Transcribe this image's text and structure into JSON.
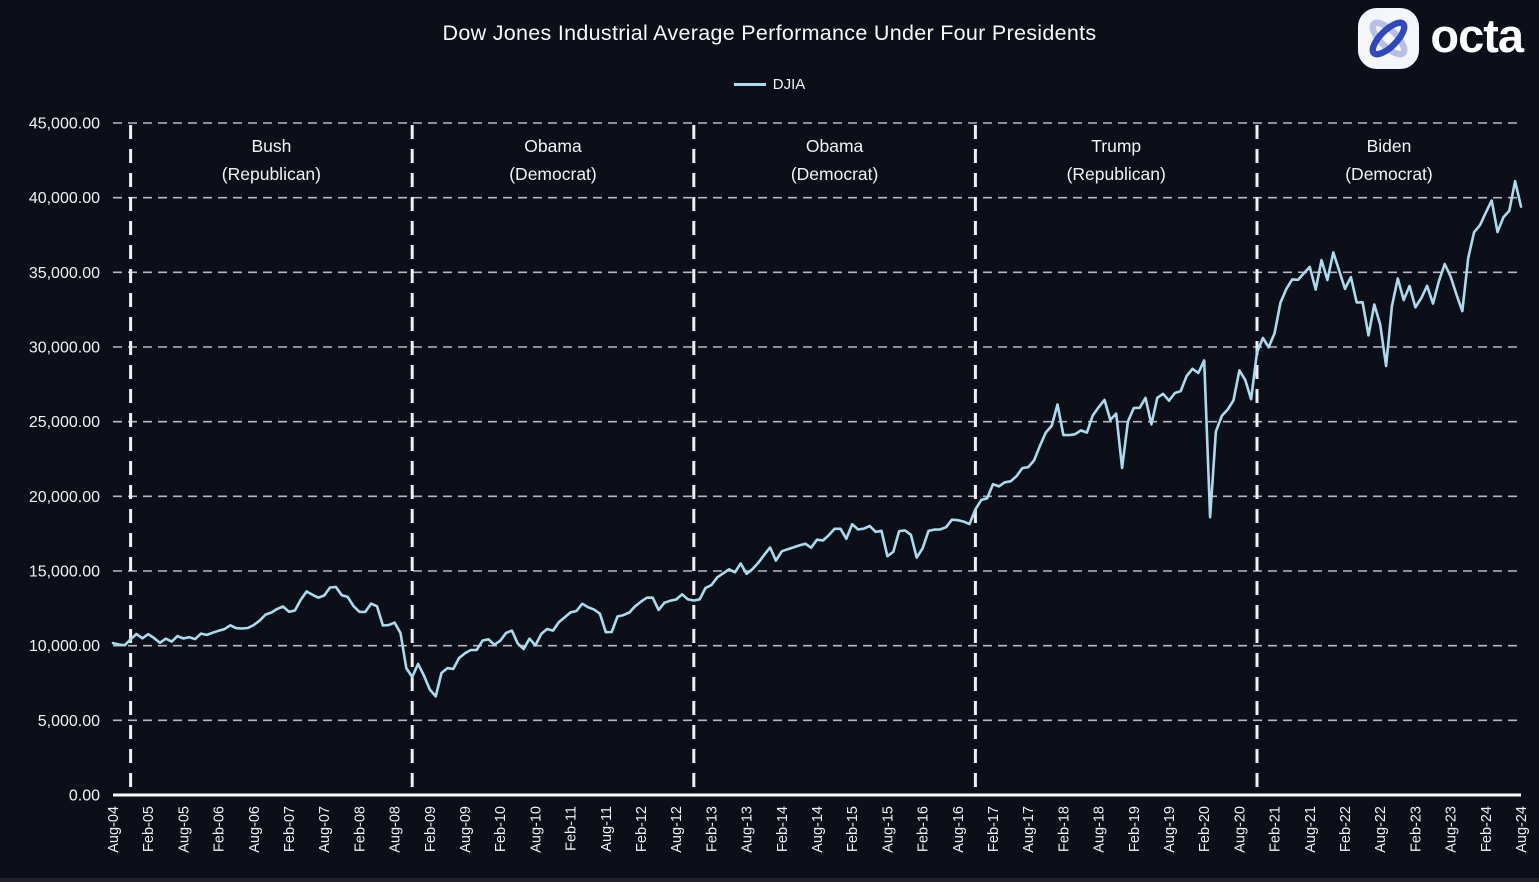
{
  "logo": {
    "text": "octa"
  },
  "chart_data": {
    "type": "line",
    "title": "Dow Jones Industrial Average Performance Under Four Presidents",
    "x_start": "Aug-2004",
    "x_end": "Aug-2024",
    "x_interval": "monthly",
    "x_tick_step_months": 6,
    "x_label_rotation": -90,
    "grid": "horizontal-dashed",
    "legend_position": "top-center",
    "ylim": [
      0,
      45000
    ],
    "y_ticks": [
      0,
      5000,
      10000,
      15000,
      20000,
      25000,
      30000,
      35000,
      40000,
      45000
    ],
    "y_tick_labels": [
      "0.00",
      "5,000.00",
      "10,000.00",
      "15,000.00",
      "20,000.00",
      "25,000.00",
      "30,000.00",
      "35,000.00",
      "40,000.00",
      "45,000.00"
    ],
    "x_tick_labels": [
      "Aug-04",
      "Feb-05",
      "Aug-05",
      "Feb-06",
      "Aug-06",
      "Feb-07",
      "Aug-07",
      "Feb-08",
      "Aug-08",
      "Feb-09",
      "Aug-09",
      "Feb-10",
      "Aug-10",
      "Feb-11",
      "Aug-11",
      "Feb-12",
      "Aug-12",
      "Feb-13",
      "Aug-13",
      "Feb-14",
      "Aug-14",
      "Feb-15",
      "Aug-15",
      "Feb-16",
      "Aug-16",
      "Feb-17",
      "Aug-17",
      "Feb-18",
      "Aug-18",
      "Feb-19",
      "Aug-19",
      "Feb-20",
      "Aug-20",
      "Feb-21",
      "Aug-21",
      "Feb-22",
      "Aug-22",
      "Feb-23",
      "Aug-23",
      "Feb-24",
      "Aug-24"
    ],
    "dividers": {
      "style": "dashed-vertical",
      "month_indices": [
        3,
        51,
        99,
        147,
        195
      ]
    },
    "annotations": [
      {
        "name": "Bush",
        "party": "(Republican)"
      },
      {
        "name": "Obama",
        "party": "(Democrat)"
      },
      {
        "name": "Obama",
        "party": "(Democrat)"
      },
      {
        "name": "Trump",
        "party": "(Republican)"
      },
      {
        "name": "Biden",
        "party": "(Democrat)"
      }
    ],
    "series": [
      {
        "name": "DJIA",
        "color": "#aadcee",
        "values": [
          10174,
          10080,
          10027,
          10428,
          10783,
          10490,
          10766,
          10504,
          10193,
          10467,
          10275,
          10641,
          10482,
          10569,
          10440,
          10806,
          10718,
          10865,
          10993,
          11109,
          11367,
          11168,
          11150,
          11186,
          11381,
          11679,
          12081,
          12222,
          12463,
          12622,
          12269,
          12354,
          13063,
          13628,
          13409,
          13212,
          13358,
          13896,
          13930,
          13372,
          13265,
          12650,
          12266,
          12263,
          12820,
          12638,
          11350,
          11378,
          11544,
          10851,
          8500,
          7900,
          8776,
          8001,
          7063,
          6600,
          8168,
          8500,
          8447,
          9172,
          9496,
          9712,
          9713,
          10345,
          10428,
          10067,
          10325,
          10857,
          11009,
          10137,
          9774,
          10466,
          10015,
          10788,
          11118,
          11006,
          11578,
          11892,
          12226,
          12320,
          12811,
          12570,
          12414,
          12143,
          10900,
          10913,
          11955,
          12046,
          12218,
          12633,
          12952,
          13212,
          13214,
          12393,
          12880,
          13009,
          13091,
          13437,
          13096,
          13026,
          13104,
          13861,
          14054,
          14579,
          14840,
          15116,
          14910,
          15500,
          14810,
          15130,
          15546,
          16086,
          16577,
          15699,
          16322,
          16458,
          16581,
          16717,
          16827,
          16563,
          17098,
          17043,
          17391,
          17828,
          17823,
          17165,
          18133,
          17776,
          17841,
          18011,
          17620,
          17690,
          15990,
          16285,
          17664,
          17720,
          17425,
          15900,
          16517,
          17685,
          17774,
          17787,
          17930,
          18432,
          18401,
          18308,
          18142,
          19124,
          19763,
          19864,
          20812,
          20663,
          20941,
          21009,
          21350,
          21891,
          21948,
          22405,
          23377,
          24272,
          24719,
          26149,
          24100,
          24103,
          24163,
          24416,
          24271,
          25415,
          25965,
          26458,
          25116,
          25538,
          21900,
          25000,
          25916,
          25929,
          26593,
          24815,
          26600,
          26864,
          26403,
          26917,
          27046,
          28051,
          28538,
          28256,
          29100,
          18600,
          24346,
          25383,
          25813,
          26428,
          28430,
          27782,
          26502,
          29639,
          30606,
          29983,
          30932,
          32982,
          33875,
          34529,
          34503,
          34935,
          35361,
          33844,
          35820,
          34484,
          36338,
          35132,
          33893,
          34678,
          32977,
          32990,
          30775,
          32845,
          31510,
          28726,
          32733,
          34590,
          33147,
          34086,
          32657,
          33274,
          34098,
          32908,
          34408,
          35559,
          34722,
          33508,
          32400,
          35951,
          37690,
          38150,
          38996,
          39807,
          37700,
          38686,
          39119,
          41100,
          39400
        ]
      }
    ],
    "colors": {
      "background": "#0c0e18",
      "line": "#aadcee",
      "grid": "#c9ccd6",
      "divider": "#eef0f4",
      "axis": "#ffffff",
      "text": "#f2f3f5",
      "logo_blue": "#2e49bd",
      "logo_light": "#b9c0e4"
    }
  }
}
